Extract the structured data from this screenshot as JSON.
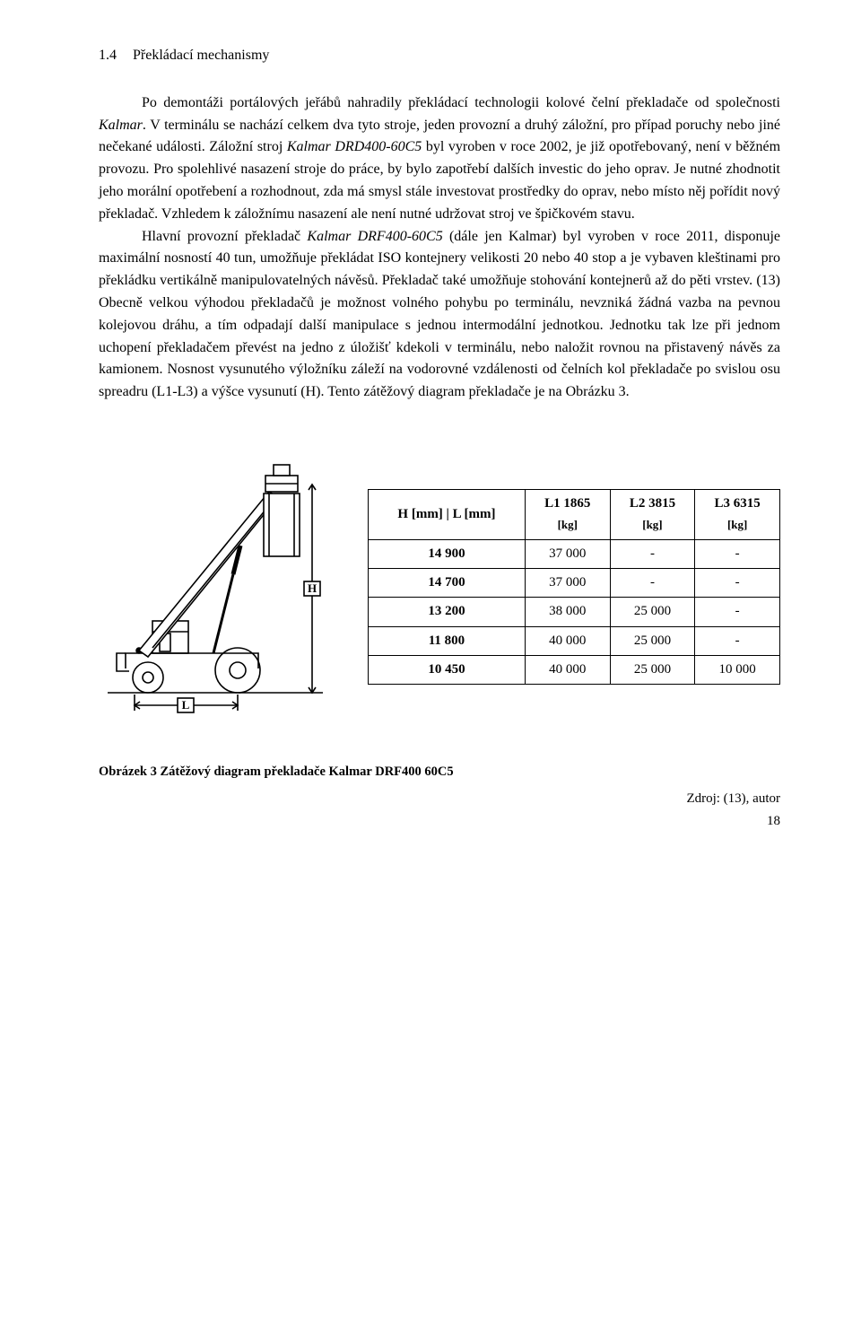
{
  "section": {
    "number": "1.4",
    "title": "Překládací mechanismy"
  },
  "paragraphs": {
    "p1_a": "Po demontáži portálových jeřábů nahradily překládací technologii kolové čelní překladače od společnosti ",
    "p1_b_italic": "Kalmar",
    "p1_c": ". V terminálu se nachází celkem dva tyto stroje, jeden provozní a druhý záložní, pro případ poruchy nebo jiné nečekané události. Záložní stroj ",
    "p1_d_italic": "Kalmar DRD400-60C5",
    "p1_e": " byl vyroben v roce 2002, je již opotřebovaný, není v běžném provozu. Pro spolehlivé nasazení stroje do práce, by bylo zapotřebí dalších investic do jeho oprav. Je nutné zhodnotit jeho morální opotřebení a rozhodnout, zda má smysl stále investovat prostředky do oprav, nebo místo něj pořídit nový překladač. Vzhledem k záložnímu nasazení ale není nutné udržovat stroj ve špičkovém stavu.",
    "p2_a": "Hlavní provozní překladač ",
    "p2_b_italic": "Kalmar DRF400-60C5",
    "p2_c": " (dále jen Kalmar) byl vyroben v roce 2011, disponuje maximální nosností 40 tun, umožňuje překládat ISO kontejnery velikosti 20 nebo 40 stop a je vybaven kleštinami pro překládku vertikálně manipulovatelných návěsů. Překladač také umožňuje stohování kontejnerů až do pěti vrstev. (13) Obecně velkou výhodou překladačů je možnost volného pohybu po terminálu, nevzniká žádná vazba na pevnou kolejovou dráhu, a tím odpadají další manipulace s jednou intermodální jednotkou. Jednotku tak lze při jednom uchopení překladačem převést na jedno z úložišť kdekoli v terminálu, nebo naložit rovnou na přistavený návěs za kamionem. Nosnost vysunutého výložníku záleží na vodorovné vzdálenosti od čelních kol překladače po svislou osu spreadru (L1-L3) a výšce vysunutí (H). Tento zátěžový diagram překladače je na Obrázku 3."
  },
  "table": {
    "header": {
      "hl": "H [mm] | L [mm]",
      "c1_top": "L1 1865",
      "c1_sub": "[kg]",
      "c2_top": "L2 3815",
      "c2_sub": "[kg]",
      "c3_top": "L3 6315",
      "c3_sub": "[kg]"
    },
    "rows": [
      {
        "h": "14 900",
        "c1": "37 000",
        "c2": "-",
        "c3": "-"
      },
      {
        "h": "14 700",
        "c1": "37 000",
        "c2": "-",
        "c3": "-"
      },
      {
        "h": "13 200",
        "c1": "38 000",
        "c2": "25 000",
        "c3": "-"
      },
      {
        "h": "11 800",
        "c1": "40 000",
        "c2": "25 000",
        "c3": "-"
      },
      {
        "h": "10 450",
        "c1": "40 000",
        "c2": "25 000",
        "c3": "10 000"
      }
    ],
    "border_color": "#000000",
    "bg": "#ffffff"
  },
  "figure": {
    "h_label": "H",
    "l_label": "L",
    "stroke": "#000000",
    "bg": "#ffffff"
  },
  "caption": "Obrázek 3 Zátěžový diagram překladače Kalmar DRF400 60C5",
  "source": "Zdroj: (13), autor",
  "page_number": "18"
}
